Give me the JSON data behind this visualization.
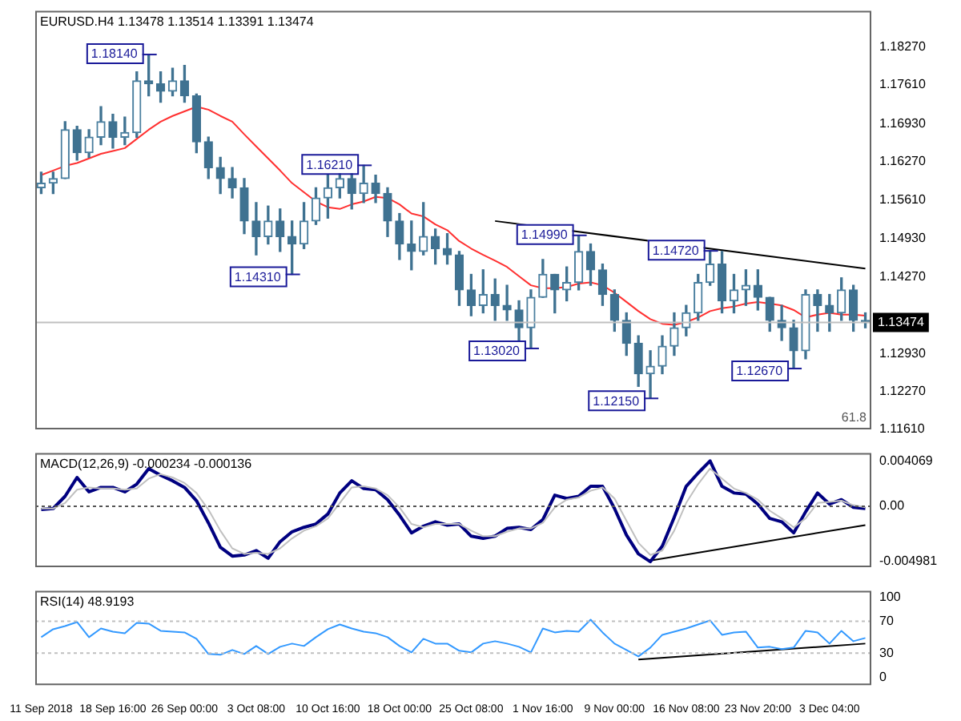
{
  "chart_data": [
    {
      "type": "candlestick",
      "title": "EURUSD.H4 1.13478 1.13514 1.13391 1.13474",
      "color": "#3f7291",
      "tick_labels": "y",
      "ohlc": [
        [
          1.1582,
          1.1609,
          1.1572,
          1.159
        ],
        [
          1.159,
          1.1609,
          1.1572,
          1.1598
        ],
        [
          1.1598,
          1.1697,
          1.1598,
          1.1683
        ],
        [
          1.1683,
          1.1689,
          1.163,
          1.1643
        ],
        [
          1.1643,
          1.1683,
          1.1635,
          1.167
        ],
        [
          1.167,
          1.1723,
          1.1657,
          1.1697
        ],
        [
          1.1697,
          1.171,
          1.1651,
          1.167
        ],
        [
          1.167,
          1.1705,
          1.1657,
          1.1678
        ],
        [
          1.1678,
          1.1784,
          1.167,
          1.1768
        ],
        [
          1.1768,
          1.1814,
          1.1742,
          1.1763
        ],
        [
          1.1763,
          1.1784,
          1.1731,
          1.175
        ],
        [
          1.175,
          1.179,
          1.1742,
          1.1768
        ],
        [
          1.1768,
          1.1795,
          1.1731,
          1.1742
        ],
        [
          1.1742,
          1.1745,
          1.1643,
          1.1662
        ],
        [
          1.1662,
          1.167,
          1.1598,
          1.1617
        ],
        [
          1.1617,
          1.1635,
          1.1572,
          1.1598
        ],
        [
          1.1598,
          1.1617,
          1.1564,
          1.1582
        ],
        [
          1.1582,
          1.1598,
          1.1502,
          1.1524
        ],
        [
          1.1524,
          1.1556,
          1.1465,
          1.1497
        ],
        [
          1.1497,
          1.155,
          1.1484,
          1.1524
        ],
        [
          1.1524,
          1.1545,
          1.1471,
          1.1497
        ],
        [
          1.1497,
          1.1524,
          1.1431,
          1.1484
        ],
        [
          1.1484,
          1.1556,
          1.1476,
          1.1524
        ],
        [
          1.1524,
          1.1582,
          1.1518,
          1.1564
        ],
        [
          1.1564,
          1.1604,
          1.1529,
          1.1582
        ],
        [
          1.1582,
          1.1622,
          1.1564,
          1.1598
        ],
        [
          1.1598,
          1.1609,
          1.1545,
          1.1572
        ],
        [
          1.1572,
          1.1621,
          1.1556,
          1.159
        ],
        [
          1.159,
          1.1604,
          1.1556,
          1.1572
        ],
        [
          1.1572,
          1.1582,
          1.1497,
          1.1524
        ],
        [
          1.1524,
          1.1537,
          1.1457,
          1.1484
        ],
        [
          1.1484,
          1.1524,
          1.1439,
          1.1471
        ],
        [
          1.1471,
          1.1556,
          1.1465,
          1.1497
        ],
        [
          1.1497,
          1.151,
          1.1449,
          1.1476
        ],
        [
          1.1476,
          1.1502,
          1.1449,
          1.1465
        ],
        [
          1.1465,
          1.1471,
          1.1377,
          1.1404
        ],
        [
          1.1404,
          1.1431,
          1.1359,
          1.1377
        ],
        [
          1.1377,
          1.1439,
          1.1364,
          1.1396
        ],
        [
          1.1396,
          1.1423,
          1.1351,
          1.1377
        ],
        [
          1.1377,
          1.1412,
          1.1351,
          1.1369
        ],
        [
          1.1369,
          1.1385,
          1.1316,
          1.1338
        ],
        [
          1.1338,
          1.1404,
          1.1302,
          1.1391
        ],
        [
          1.1391,
          1.1457,
          1.1391,
          1.1431
        ],
        [
          1.1431,
          1.1431,
          1.1364,
          1.1404
        ],
        [
          1.1404,
          1.1444,
          1.1385,
          1.1417
        ],
        [
          1.1417,
          1.1499,
          1.1404,
          1.1471
        ],
        [
          1.1471,
          1.1484,
          1.1412,
          1.1439
        ],
        [
          1.1439,
          1.1449,
          1.1377,
          1.1396
        ],
        [
          1.1396,
          1.1404,
          1.1332,
          1.1351
        ],
        [
          1.1351,
          1.1364,
          1.129,
          1.1311
        ],
        [
          1.1311,
          1.1324,
          1.1236,
          1.1258
        ],
        [
          1.1258,
          1.1298,
          1.1215,
          1.1271
        ],
        [
          1.1271,
          1.1324,
          1.1258,
          1.1306
        ],
        [
          1.1306,
          1.1364,
          1.129,
          1.1338
        ],
        [
          1.1338,
          1.1377,
          1.1324,
          1.1364
        ],
        [
          1.1364,
          1.1431,
          1.1351,
          1.1417
        ],
        [
          1.1417,
          1.1472,
          1.1412,
          1.1449
        ],
        [
          1.1449,
          1.1471,
          1.1364,
          1.1385
        ],
        [
          1.1385,
          1.1431,
          1.1364,
          1.1404
        ],
        [
          1.1404,
          1.1439,
          1.1377,
          1.1412
        ],
        [
          1.1412,
          1.1439,
          1.1369,
          1.1391
        ],
        [
          1.1391,
          1.1391,
          1.1332,
          1.1351
        ],
        [
          1.1351,
          1.1377,
          1.1316,
          1.1338
        ],
        [
          1.1338,
          1.1351,
          1.1267,
          1.1298
        ],
        [
          1.1298,
          1.1404,
          1.1284,
          1.1396
        ],
        [
          1.1396,
          1.1404,
          1.1332,
          1.1377
        ],
        [
          1.1377,
          1.1396,
          1.1332,
          1.1364
        ],
        [
          1.1364,
          1.1425,
          1.1351,
          1.1404
        ],
        [
          1.1404,
          1.1412,
          1.1332,
          1.1351
        ],
        [
          1.1351,
          1.1364,
          1.1338,
          1.1347
        ]
      ],
      "series": [
        {
          "type": "line",
          "color": "#ff3030",
          "values": [
            1.1604,
            1.1612,
            1.162,
            1.1625,
            1.1633,
            1.1641,
            1.1646,
            1.1651,
            1.1667,
            1.1683,
            1.1697,
            1.1707,
            1.1715,
            1.1723,
            1.1718,
            1.1707,
            1.1697,
            1.1675,
            1.1654,
            1.1633,
            1.1612,
            1.159,
            1.1574,
            1.1558,
            1.1548,
            1.1545,
            1.1553,
            1.1558,
            1.1566,
            1.1564,
            1.1553,
            1.1537,
            1.1532,
            1.1518,
            1.1508,
            1.1489,
            1.1476,
            1.1465,
            1.1455,
            1.1444,
            1.1428,
            1.1412,
            1.1407,
            1.1407,
            1.1409,
            1.1415,
            1.1417,
            1.1412,
            1.1399,
            1.1383,
            1.1367,
            1.1353,
            1.1345,
            1.1343,
            1.1348,
            1.1356,
            1.1367,
            1.1372,
            1.1375,
            1.138,
            1.1383,
            1.138,
            1.1377,
            1.1369,
            1.1356,
            1.1361,
            1.1364,
            1.1361,
            1.1361,
            1.1359
          ]
        },
        {
          "type": "line",
          "color": "#000000",
          "values": [
            null,
            null,
            null,
            null,
            null,
            null,
            null,
            null,
            null,
            null,
            null,
            null,
            null,
            null,
            null,
            null,
            null,
            null,
            null,
            null,
            null,
            null,
            null,
            null,
            null,
            null,
            null,
            null,
            null,
            null,
            null,
            null,
            null,
            null,
            null,
            null,
            null,
            null,
            1.1524,
            null,
            null,
            null,
            null,
            null,
            null,
            null,
            null,
            null,
            null,
            null,
            null,
            null,
            null,
            null,
            null,
            null,
            null,
            null,
            null,
            null,
            null,
            null,
            null,
            null,
            null,
            null,
            null,
            null,
            null,
            1.1441
          ]
        }
      ],
      "ylim": [
        1.1161,
        1.189
      ],
      "yticks": [
        {
          "value": 1.1827,
          "label": "1.18270"
        },
        {
          "value": 1.1761,
          "label": "1.17610"
        },
        {
          "value": 1.1693,
          "label": "1.16930"
        },
        {
          "value": 1.1627,
          "label": "1.16270"
        },
        {
          "value": 1.1561,
          "label": "1.15610"
        },
        {
          "value": 1.1493,
          "label": "1.14930"
        },
        {
          "value": 1.1427,
          "label": "1.14270"
        },
        {
          "value": 1.1293,
          "label": "1.12930"
        },
        {
          "value": 1.1227,
          "label": "1.12270"
        },
        {
          "value": 1.1161,
          "label": "1.11610"
        }
      ],
      "ref_lines": [
        {
          "axis": "y",
          "value": 1.13474,
          "label": "1.13474",
          "color": "#c0c0c0"
        }
      ],
      "annotations": [
        "1.18140",
        "1.14310",
        "1.16210",
        "1.13020",
        "1.14990",
        "1.12150",
        "1.14720",
        "1.12670",
        "61.8"
      ]
    },
    {
      "type": "line",
      "title": "MACD(12,26,9) -0.000234 -0.000136",
      "tick_labels": "y",
      "series": [
        {
          "color": "#c0c0c0",
          "values": [
            -0.0002,
            -0.0002,
            0.0003,
            0.0015,
            0.0017,
            0.0016,
            0.0016,
            0.0015,
            0.0016,
            0.0025,
            0.0029,
            0.0026,
            0.0021,
            0.0012,
            -0.0003,
            -0.0022,
            -0.0038,
            -0.0043,
            -0.0042,
            -0.0043,
            -0.0038,
            -0.0029,
            -0.0022,
            -0.0018,
            -0.0011,
            0.0003,
            0.0017,
            0.0018,
            0.0016,
            0.001,
            -0.0001,
            -0.0016,
            -0.0019,
            -0.0016,
            -0.0016,
            -0.0016,
            -0.0022,
            -0.0027,
            -0.0027,
            -0.0023,
            -0.002,
            -0.002,
            -0.0015,
            -0.0001,
            0.0006,
            0.0008,
            0.0014,
            0.0017,
            0.0007,
            -0.0013,
            -0.0033,
            -0.0044,
            -0.004,
            -0.0022,
            0.0003,
            0.002,
            0.0034,
            0.0025,
            0.0016,
            0.0012,
            0.0006,
            -0.0004,
            -0.0011,
            -0.0019,
            -0.0011,
            0.0003,
            0.0004,
            0.0005,
            0.0001,
            -0.0001
          ]
        },
        {
          "color": "#000080",
          "values": [
            -0.0003,
            -0.0002,
            0.0009,
            0.0026,
            0.0013,
            0.0017,
            0.0017,
            0.0013,
            0.002,
            0.0034,
            0.0028,
            0.0023,
            0.0017,
            0.0005,
            -0.0015,
            -0.0037,
            -0.0045,
            -0.0044,
            -0.004,
            -0.0047,
            -0.0032,
            -0.0023,
            -0.0019,
            -0.0016,
            -0.0007,
            0.0012,
            0.0023,
            0.0016,
            0.0015,
            0.0006,
            -0.0008,
            -0.0024,
            -0.0018,
            -0.0014,
            -0.0017,
            -0.0016,
            -0.0027,
            -0.0029,
            -0.0027,
            -0.002,
            -0.0019,
            -0.0021,
            -0.0012,
            0.001,
            0.0007,
            0.0009,
            0.0018,
            0.0018,
            -0.0002,
            -0.0026,
            -0.0043,
            -0.005,
            -0.0036,
            -0.001,
            0.0018,
            0.003,
            0.0041,
            0.0018,
            0.0012,
            0.0011,
            0.0002,
            -0.0011,
            -0.0014,
            -0.0024,
            -0.0005,
            0.0012,
            0.0002,
            0.0006,
            -0.0001,
            -0.0002
          ]
        },
        {
          "color": "#000000",
          "values": [
            null,
            null,
            null,
            null,
            null,
            null,
            null,
            null,
            null,
            null,
            null,
            null,
            null,
            null,
            null,
            null,
            null,
            null,
            null,
            null,
            null,
            null,
            null,
            null,
            null,
            null,
            null,
            null,
            null,
            null,
            null,
            null,
            null,
            null,
            null,
            null,
            null,
            null,
            null,
            null,
            null,
            null,
            null,
            null,
            null,
            null,
            null,
            null,
            null,
            null,
            null,
            -0.0049,
            null,
            null,
            null,
            null,
            null,
            null,
            null,
            null,
            null,
            null,
            null,
            null,
            null,
            null,
            null,
            null,
            null,
            -0.0017
          ]
        }
      ],
      "ylim": [
        -0.0055,
        0.0048
      ],
      "yticks": [
        0.004069,
        {
          "value": 0,
          "label": "0.00"
        },
        -0.004981
      ],
      "ref_lines": [
        {
          "axis": "y",
          "value": 0,
          "color": "#555555",
          "line_style": "dotted"
        }
      ]
    },
    {
      "type": "line",
      "title": "RSI(14) 48.9193",
      "categories": [
        "11 Sep 2018",
        null,
        null,
        null,
        null,
        null,
        "18 Sep 16:00",
        null,
        null,
        null,
        null,
        null,
        "26 Sep 00:00",
        null,
        null,
        null,
        null,
        null,
        "3 Oct 08:00",
        null,
        null,
        null,
        null,
        null,
        "10 Oct 16:00",
        null,
        null,
        null,
        null,
        null,
        "18 Oct 00:00",
        null,
        null,
        null,
        null,
        null,
        "25 Oct 08:00",
        null,
        null,
        null,
        null,
        null,
        "1 Nov 16:00",
        null,
        null,
        null,
        null,
        null,
        "9 Nov 00:00",
        null,
        null,
        null,
        null,
        null,
        "16 Nov 08:00",
        null,
        null,
        null,
        null,
        null,
        "23 Nov 20:00",
        null,
        null,
        null,
        null,
        null,
        "3 Dec 04:00",
        null,
        null,
        null
      ],
      "series": [
        {
          "color": "#3399ff",
          "values": [
            50,
            60,
            64,
            69,
            50,
            61,
            57,
            55,
            68,
            67,
            58,
            57,
            56,
            48,
            29,
            28,
            34,
            29,
            39,
            29,
            38,
            42,
            39,
            50,
            60,
            66,
            61,
            57,
            55,
            50,
            39,
            31,
            48,
            42,
            42,
            33,
            31,
            42,
            45,
            42,
            38,
            31,
            61,
            56,
            58,
            57,
            72,
            56,
            42,
            34,
            26,
            37,
            53,
            57,
            61,
            66,
            71,
            53,
            56,
            57,
            37,
            38,
            35,
            37,
            58,
            56,
            42,
            58,
            45,
            49
          ]
        },
        {
          "color": "#000000",
          "values": [
            null,
            null,
            null,
            null,
            null,
            null,
            null,
            null,
            null,
            null,
            null,
            null,
            null,
            null,
            null,
            null,
            null,
            null,
            null,
            null,
            null,
            null,
            null,
            null,
            null,
            null,
            null,
            null,
            null,
            null,
            null,
            null,
            null,
            null,
            null,
            null,
            null,
            null,
            null,
            null,
            null,
            null,
            null,
            null,
            null,
            null,
            null,
            null,
            null,
            null,
            22,
            null,
            null,
            null,
            null,
            null,
            null,
            null,
            null,
            null,
            null,
            null,
            null,
            null,
            null,
            null,
            null,
            null,
            null,
            42
          ]
        }
      ],
      "ylim": [
        -10,
        108
      ],
      "yticks": [
        100,
        70,
        30,
        0
      ],
      "ref_lines": [
        {
          "axis": "y",
          "value": 70,
          "color": "#c0c0c0",
          "line_style": "dotted"
        },
        {
          "axis": "y",
          "value": 30,
          "color": "#c0c0c0",
          "line_style": "dotted"
        }
      ]
    }
  ]
}
